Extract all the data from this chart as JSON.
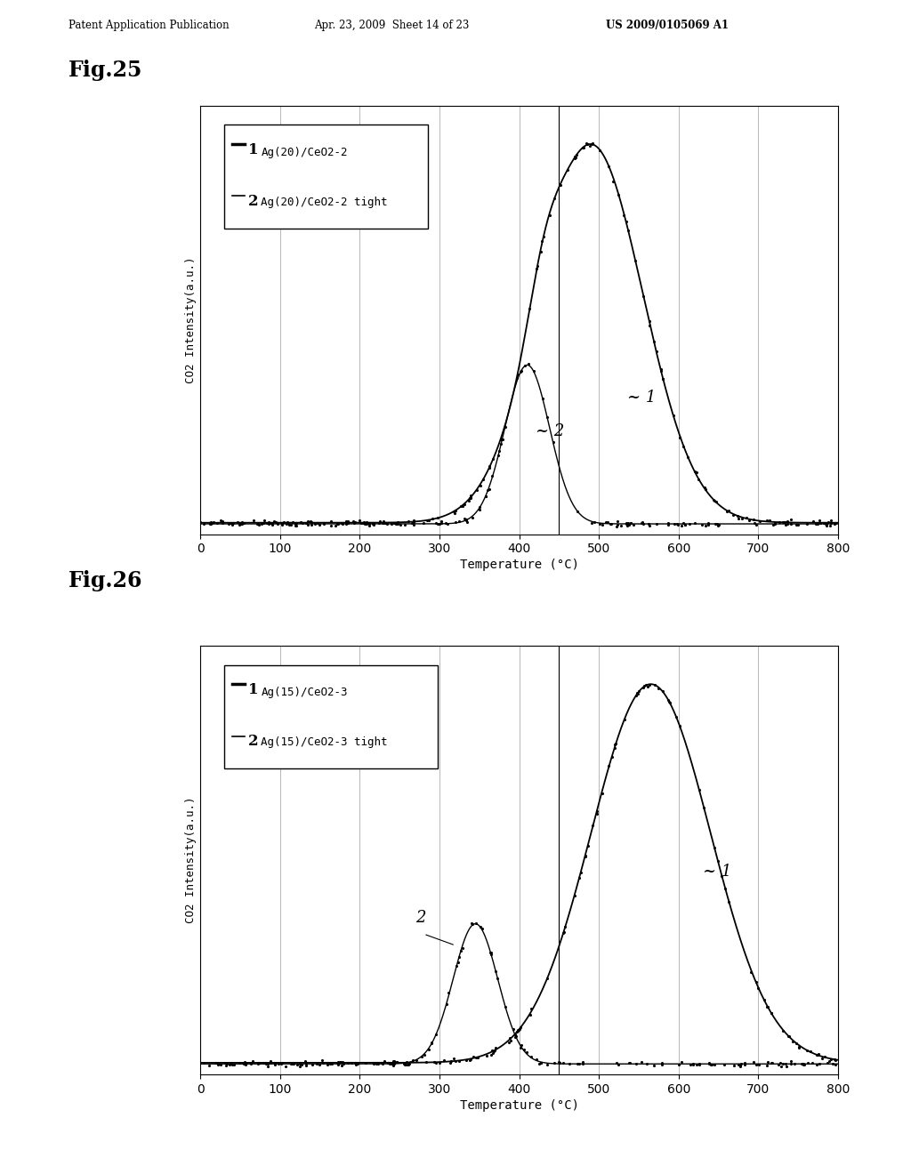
{
  "header_left": "Patent Application Publication",
  "header_mid": "Apr. 23, 2009  Sheet 14 of 23",
  "header_right": "US 2009/0105069 A1",
  "fig25_title": "Fig.25",
  "fig26_title": "Fig.26",
  "xlabel": "Temperature (°C)",
  "ylabel": "CO2 Intensity(a.u.)",
  "xmin": 0,
  "xmax": 800,
  "xticks": [
    0,
    100,
    200,
    300,
    400,
    500,
    600,
    700,
    800
  ],
  "fig25": {
    "legend1": "Ag(20)/CeO2-2",
    "legend2": "Ag(20)/CeO2-2 tight",
    "vline_x": 450
  },
  "fig26": {
    "legend1": "Ag(15)/CeO2-3",
    "legend2": "Ag(15)/CeO2-3 tight",
    "vline_x": 450
  },
  "bg_color": "#ffffff",
  "line_color": "#000000",
  "grid_color": "#aaaaaa"
}
